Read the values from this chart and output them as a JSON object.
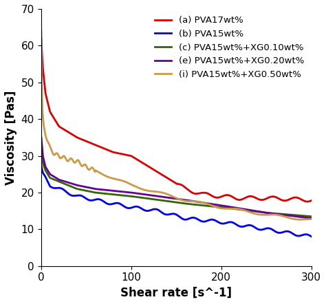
{
  "title": "",
  "xlabel": "Shear rate [s^-1]",
  "ylabel": "Viscosity [Pas]",
  "xlim": [
    0,
    300
  ],
  "ylim": [
    0,
    70
  ],
  "xticks": [
    0,
    100,
    200,
    300
  ],
  "yticks": [
    0,
    10,
    20,
    30,
    40,
    50,
    60,
    70
  ],
  "series": [
    {
      "label": "(a) PVA17wt%",
      "color": "#dd0000",
      "linewidth": 2.0
    },
    {
      "label": "(b) PVA15wt%",
      "color": "#0000ee",
      "linewidth": 2.0
    },
    {
      "label": "(c) PVA15wt%+XG0.10wt%",
      "color": "#336600",
      "linewidth": 2.0
    },
    {
      "label": "(e) PVA15wt%+XG0.20wt%",
      "color": "#660099",
      "linewidth": 2.0
    },
    {
      "label": "(i) PVA15wt%+XG0.50wt%",
      "color": "#cc9944",
      "linewidth": 2.0
    }
  ],
  "legend_fontsize": 9.5,
  "tick_fontsize": 11,
  "label_fontsize": 12,
  "figwidth": 4.74,
  "figheight": 4.42,
  "dpi": 100
}
